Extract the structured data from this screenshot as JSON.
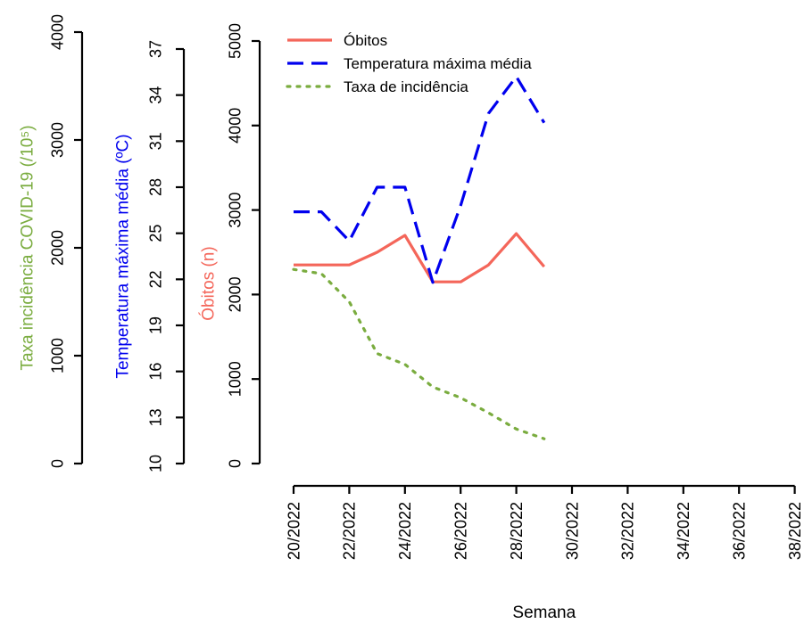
{
  "chart_data": {
    "type": "line",
    "xlabel": "Semana",
    "x_ticks": [
      "20/2022",
      "22/2022",
      "24/2022",
      "26/2022",
      "28/2022",
      "30/2022",
      "32/2022",
      "34/2022",
      "36/2022",
      "38/2022"
    ],
    "x_weeks": [
      20,
      21,
      22,
      23,
      24,
      25,
      26,
      27,
      28,
      29
    ],
    "axes": {
      "incidence": {
        "label": "Taxa incidência COVID-19 (/10⁵)",
        "color": "#7aac3f",
        "ylim": [
          0,
          4000
        ],
        "ticks": [
          "0",
          "1000",
          "2000",
          "3000",
          "4000"
        ]
      },
      "temperature": {
        "label": "Temperatura máxima média (ºC)",
        "color": "#0000ee",
        "ylim": [
          10,
          37
        ],
        "ticks": [
          "10",
          "13",
          "16",
          "19",
          "22",
          "25",
          "28",
          "31",
          "34",
          "37"
        ]
      },
      "deaths": {
        "label": "Óbitos (n)",
        "color": "#f4665a",
        "ylim": [
          0,
          5000
        ],
        "ticks": [
          "0",
          "1000",
          "2000",
          "3000",
          "4000",
          "5000"
        ]
      }
    },
    "series": [
      {
        "name": "Óbitos",
        "axis": "deaths",
        "color": "#f4665a",
        "style": "solid",
        "values": [
          2350,
          2350,
          2350,
          2500,
          2700,
          2150,
          2150,
          2350,
          2720,
          2330
        ]
      },
      {
        "name": "Temperatura máxima média",
        "axis": "temperature",
        "color": "#0000ee",
        "style": "dashed",
        "values": [
          26.4,
          26.4,
          24.5,
          28.0,
          28.0,
          21.8,
          26.8,
          32.8,
          35.2,
          32.2
        ]
      },
      {
        "name": "Taxa de incidência",
        "axis": "incidence",
        "color": "#7aac3f",
        "style": "dotted",
        "values": [
          1800,
          1760,
          1500,
          1020,
          920,
          710,
          610,
          470,
          320,
          230
        ]
      }
    ],
    "legend": {
      "position": "top"
    },
    "grid": false
  }
}
